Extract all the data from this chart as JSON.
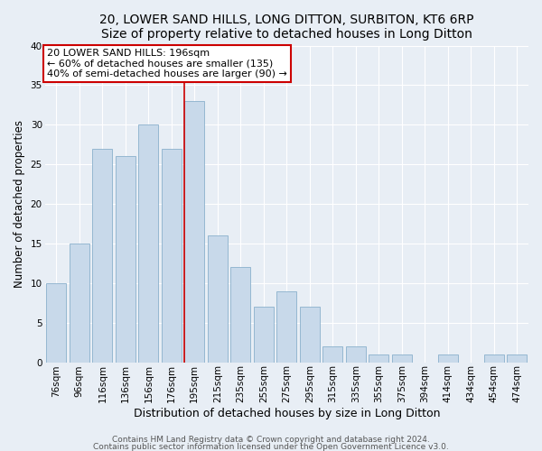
{
  "title1": "20, LOWER SAND HILLS, LONG DITTON, SURBITON, KT6 6RP",
  "title2": "Size of property relative to detached houses in Long Ditton",
  "xlabel": "Distribution of detached houses by size in Long Ditton",
  "ylabel": "Number of detached properties",
  "categories": [
    "76sqm",
    "96sqm",
    "116sqm",
    "136sqm",
    "156sqm",
    "176sqm",
    "195sqm",
    "215sqm",
    "235sqm",
    "255sqm",
    "275sqm",
    "295sqm",
    "315sqm",
    "335sqm",
    "355sqm",
    "375sqm",
    "394sqm",
    "414sqm",
    "434sqm",
    "454sqm",
    "474sqm"
  ],
  "values": [
    10,
    15,
    27,
    26,
    30,
    27,
    33,
    16,
    12,
    7,
    9,
    7,
    2,
    2,
    1,
    1,
    0,
    1,
    0,
    1,
    1
  ],
  "bar_color": "#c8d9ea",
  "bar_edge_color": "#8ab0cc",
  "vline_color": "#cc0000",
  "annotation_text": "20 LOWER SAND HILLS: 196sqm\n← 60% of detached houses are smaller (135)\n40% of semi-detached houses are larger (90) →",
  "annotation_box_color": "#ffffff",
  "annotation_box_edge_color": "#cc0000",
  "footer1": "Contains HM Land Registry data © Crown copyright and database right 2024.",
  "footer2": "Contains public sector information licensed under the Open Government Licence v3.0.",
  "bg_color": "#e8eef5",
  "plot_bg_color": "#e8eef5",
  "ylim": [
    0,
    40
  ],
  "yticks": [
    0,
    5,
    10,
    15,
    20,
    25,
    30,
    35,
    40
  ],
  "title_fontsize": 10,
  "xlabel_fontsize": 9,
  "ylabel_fontsize": 8.5,
  "tick_fontsize": 7.5,
  "footer_fontsize": 6.5,
  "annotation_fontsize": 8
}
